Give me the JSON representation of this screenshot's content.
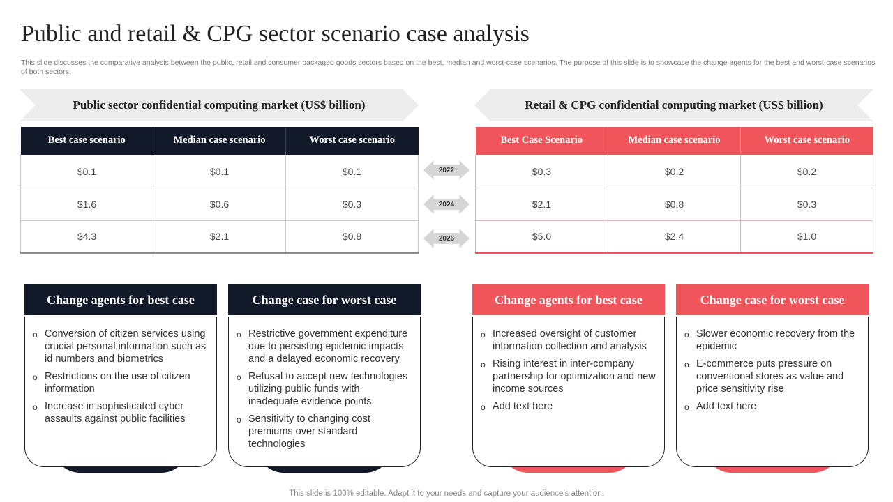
{
  "page": {
    "title": "Public and retail & CPG sector scenario case analysis",
    "subtitle": "This slide discusses the comparative analysis between the public, retail and consumer packaged goods sectors based on the best, median and worst-case scenarios. The purpose of this slide is to showcase the change agents for the best and worst-case scenarios of both sectors.",
    "footer": "This slide is 100% editable. Adapt it to your needs and capture your audience's attention."
  },
  "colors": {
    "navy": "#121a2a",
    "coral": "#f0555b",
    "banner": "#ececec",
    "year_arrow": "#d6d6d6"
  },
  "public_table": {
    "banner": "Public sector confidential computing market (US$ billion)",
    "headers": [
      "Best case scenario",
      "Median case scenario",
      "Worst case scenario"
    ],
    "rows": [
      [
        "$0.1",
        "$0.1",
        "$0.1"
      ],
      [
        "$1.6",
        "$0.6",
        "$0.3"
      ],
      [
        "$4.3",
        "$2.1",
        "$0.8"
      ]
    ]
  },
  "retail_table": {
    "banner": "Retail & CPG confidential computing market (US$ billion)",
    "headers": [
      "Best Case Scenario",
      "Median case scenario",
      "Worst case scenario"
    ],
    "rows": [
      [
        "$0.3",
        "$0.2",
        "$0.2"
      ],
      [
        "$2.1",
        "$0.8",
        "$0.3"
      ],
      [
        "$5.0",
        "$2.4",
        "$1.0"
      ]
    ]
  },
  "years": [
    "2022",
    "2024",
    "2026"
  ],
  "cards": [
    {
      "title": "Change agents for best case",
      "bullet": "o",
      "items": [
        "Conversion of citizen services using crucial personal information such as id numbers and biometrics",
        "Restrictions on the use of citizen information",
        "Increase in sophisticated cyber assaults against public facilities"
      ]
    },
    {
      "title": "Change case for worst case",
      "bullet": "o",
      "items": [
        "Restrictive government expenditure due to persisting epidemic impacts and a delayed economic recovery",
        "Refusal to accept new technologies utilizing public funds with inadequate evidence points",
        "Sensitivity to changing cost premiums over standard technologies"
      ]
    },
    {
      "title": "Change agents for best case",
      "bullet": "o",
      "items": [
        "Increased oversight of customer information collection and analysis",
        "Rising interest in inter-company partnership for optimization and new income sources",
        "Add text here"
      ]
    },
    {
      "title": "Change case for worst case",
      "bullet": "o",
      "items": [
        "Slower economic recovery from the epidemic",
        "E-commerce puts pressure on conventional stores as value and price sensitivity rise",
        "Add text here"
      ]
    }
  ]
}
